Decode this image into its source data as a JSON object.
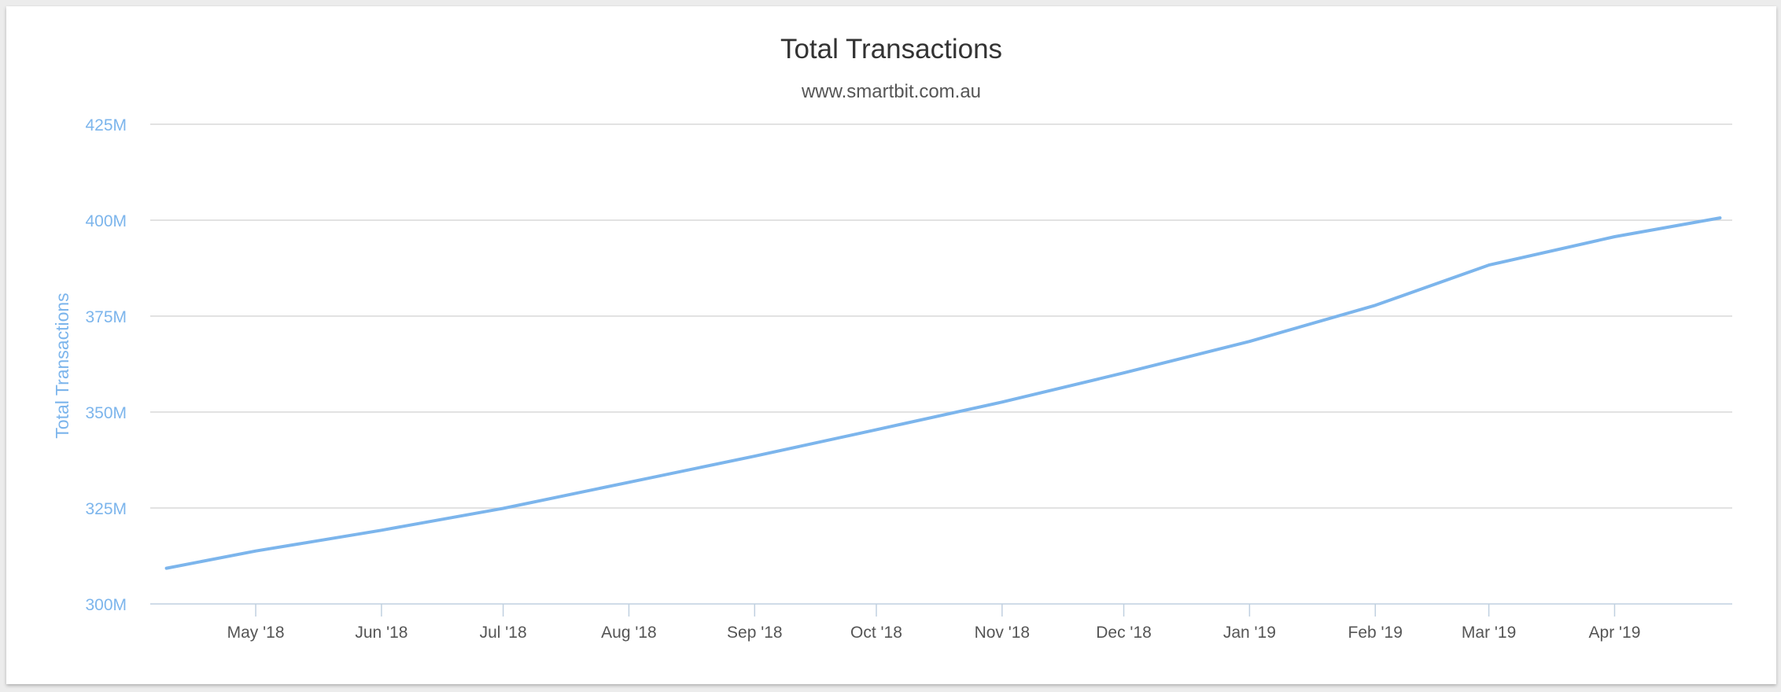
{
  "chart_data": {
    "type": "line",
    "title": "Total Transactions",
    "subtitle": "www.smartbit.com.au",
    "ylabel": "Total Transactions",
    "xlabel": "",
    "ylim": [
      300,
      425
    ],
    "yunit": "M",
    "yticks": [
      {
        "value": 300,
        "label": "300M"
      },
      {
        "value": 325,
        "label": "325M"
      },
      {
        "value": 350,
        "label": "350M"
      },
      {
        "value": 375,
        "label": "375M"
      },
      {
        "value": 400,
        "label": "400M"
      },
      {
        "value": 425,
        "label": "425M"
      }
    ],
    "xlim": [
      "2018-04-05",
      "2019-04-30"
    ],
    "xticks": [
      {
        "date": "2018-05-01",
        "label": "May '18"
      },
      {
        "date": "2018-06-01",
        "label": "Jun '18"
      },
      {
        "date": "2018-07-01",
        "label": "Jul '18"
      },
      {
        "date": "2018-08-01",
        "label": "Aug '18"
      },
      {
        "date": "2018-09-01",
        "label": "Sep '18"
      },
      {
        "date": "2018-10-01",
        "label": "Oct '18"
      },
      {
        "date": "2018-11-01",
        "label": "Nov '18"
      },
      {
        "date": "2018-12-01",
        "label": "Dec '18"
      },
      {
        "date": "2019-01-01",
        "label": "Jan '19"
      },
      {
        "date": "2019-02-01",
        "label": "Feb '19"
      },
      {
        "date": "2019-03-01",
        "label": "Mar '19"
      },
      {
        "date": "2019-04-01",
        "label": "Apr '19"
      }
    ],
    "grid": true,
    "legend": "none",
    "color": "#7cb5ec",
    "series": [
      {
        "x": [
          "2018-04-09",
          "2018-05-01",
          "2018-06-01",
          "2018-07-01",
          "2018-08-01",
          "2018-09-01",
          "2018-10-01",
          "2018-11-01",
          "2018-12-01",
          "2019-01-01",
          "2019-02-01",
          "2019-03-01",
          "2019-04-01",
          "2019-04-27"
        ],
        "y": [
          309.3,
          313.8,
          319.2,
          324.9,
          331.7,
          338.5,
          345.4,
          352.6,
          360.2,
          368.4,
          377.8,
          388.3,
          395.7,
          400.6
        ]
      }
    ]
  }
}
